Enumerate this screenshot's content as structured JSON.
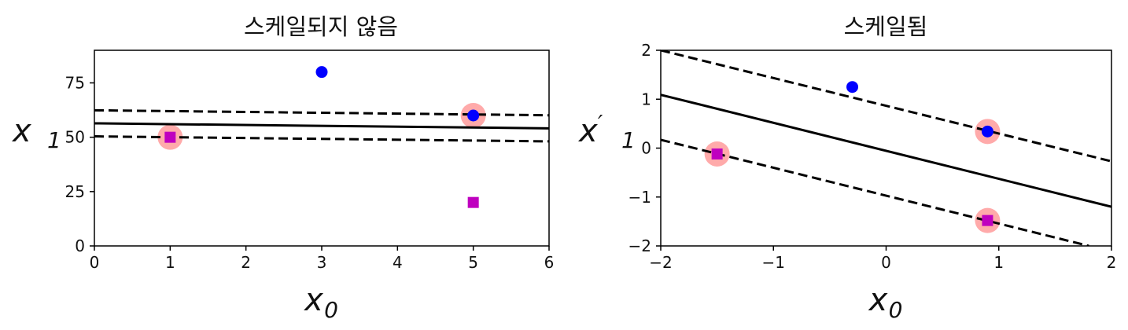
{
  "chart_data": [
    {
      "type": "scatter",
      "title": "스케일되지 않음",
      "xlabel": "x",
      "xlabel_sub": "0",
      "ylabel": "x",
      "ylabel_prime": "",
      "ylabel_sub": "1",
      "xlim": [
        0,
        6
      ],
      "ylim": [
        0,
        90
      ],
      "xticks": [
        0,
        1,
        2,
        3,
        4,
        5,
        6
      ],
      "yticks": [
        0,
        25,
        50,
        75
      ],
      "xtick_labels": [
        "0",
        "1",
        "2",
        "3",
        "4",
        "5",
        "6"
      ],
      "ytick_labels": [
        "0",
        "25",
        "50",
        "75"
      ],
      "grid": false,
      "colors": {
        "class_a": "#0000ff",
        "class_b": "#bf00bf",
        "support": "#ffaaaa",
        "line": "#000000"
      },
      "points": [
        {
          "x": 1,
          "y": 50,
          "class": "square"
        },
        {
          "x": 5,
          "y": 20,
          "class": "square"
        },
        {
          "x": 3,
          "y": 80,
          "class": "circle"
        },
        {
          "x": 5,
          "y": 60,
          "class": "circle"
        }
      ],
      "support_vectors": [
        {
          "x": 1,
          "y": 50
        },
        {
          "x": 5,
          "y": 60
        }
      ],
      "decision_boundary": {
        "x": [
          0,
          6
        ],
        "y": [
          56.4,
          54.1
        ]
      },
      "margins": [
        {
          "x": [
            0,
            6
          ],
          "y": [
            62.4,
            60.1
          ]
        },
        {
          "x": [
            0,
            6
          ],
          "y": [
            50.4,
            48.1
          ]
        }
      ]
    },
    {
      "type": "scatter",
      "title": "스케일됨",
      "xlabel": "x",
      "xlabel_sub": "0",
      "ylabel": "x",
      "ylabel_prime": "′",
      "ylabel_sub": "1",
      "xlim": [
        -2,
        2
      ],
      "ylim": [
        -2,
        2
      ],
      "xticks": [
        -2,
        -1,
        0,
        1,
        2
      ],
      "yticks": [
        -2,
        -1,
        0,
        1,
        2
      ],
      "xtick_labels": [
        "−2",
        "−1",
        "0",
        "1",
        "2"
      ],
      "ytick_labels": [
        "−2",
        "−1",
        "0",
        "1",
        "2"
      ],
      "grid": false,
      "colors": {
        "class_a": "#0000ff",
        "class_b": "#bf00bf",
        "support": "#ffaaaa",
        "line": "#000000"
      },
      "points": [
        {
          "x": -1.5,
          "y": -0.12,
          "class": "square"
        },
        {
          "x": 0.9,
          "y": -1.48,
          "class": "square"
        },
        {
          "x": -0.3,
          "y": 1.25,
          "class": "circle"
        },
        {
          "x": 0.9,
          "y": 0.34,
          "class": "circle"
        }
      ],
      "support_vectors": [
        {
          "x": -1.5,
          "y": -0.12
        },
        {
          "x": 0.9,
          "y": -1.48
        },
        {
          "x": 0.9,
          "y": 0.34
        }
      ],
      "decision_boundary": {
        "x": [
          -2,
          2
        ],
        "y": [
          1.09,
          -1.2
        ]
      },
      "margins": [
        {
          "x": [
            -2,
            2
          ],
          "y": [
            2.0,
            -0.27
          ]
        },
        {
          "x": [
            -2,
            1.8
          ],
          "y": [
            0.17,
            -2.0
          ]
        }
      ]
    }
  ]
}
